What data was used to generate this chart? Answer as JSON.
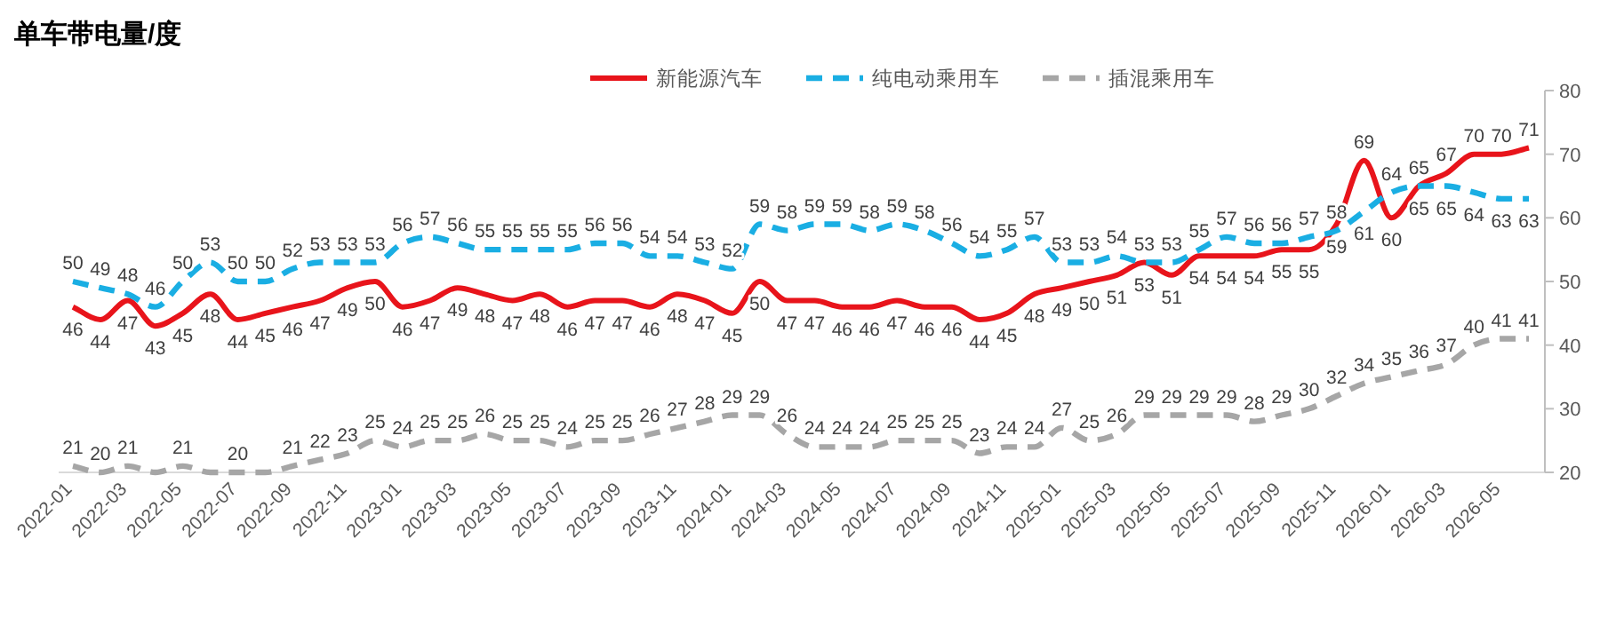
{
  "chart_data": {
    "type": "line",
    "title": "单车带电量/度",
    "categories": [
      "2022-01",
      null,
      "2022-03",
      null,
      "2022-05",
      null,
      "2022-07",
      null,
      "2022-09",
      null,
      "2022-11",
      null,
      "2023-01",
      null,
      "2023-03",
      null,
      "2023-05",
      null,
      "2023-07",
      null,
      "2023-09",
      null,
      "2023-11",
      null,
      "2024-01",
      null,
      "2024-03",
      null,
      "2024-05",
      null,
      "2024-07",
      null,
      "2024-09",
      null,
      "2024-11",
      null,
      "2025-01",
      null,
      "2025-03",
      null,
      "2025-05",
      null,
      "2025-07",
      null,
      "2025-09",
      null,
      "2025-11",
      null,
      "2026-01",
      null,
      "2026-03",
      null,
      "2026-05",
      null
    ],
    "series": [
      {
        "name": "新能源汽车",
        "color": "#e8141b",
        "line_style": "solid",
        "values": [
          46,
          44,
          47,
          43,
          45,
          48,
          44,
          45,
          46,
          47,
          49,
          50,
          46,
          47,
          49,
          48,
          47,
          48,
          46,
          47,
          47,
          46,
          48,
          47,
          45,
          50,
          47,
          47,
          46,
          46,
          47,
          46,
          46,
          44,
          45,
          48,
          49,
          50,
          51,
          53,
          51,
          54,
          54,
          54,
          55,
          55,
          59,
          69,
          60,
          65,
          67,
          70,
          70,
          71
        ],
        "value_labels": [
          "46",
          "44",
          "47",
          "43",
          "45",
          "48",
          "44",
          "45",
          "46",
          "47",
          "49",
          "50",
          "46",
          "47",
          "49",
          "48",
          "47",
          "48",
          "46",
          "47",
          "47",
          "46",
          "48",
          "47",
          "45",
          "50",
          "47",
          "47",
          "46",
          "46",
          "47",
          "46",
          "46",
          "44",
          "45",
          "48",
          "49",
          "50",
          "51",
          "53",
          "51",
          "54",
          "54",
          "54",
          "55",
          "55",
          "59",
          "69",
          "60",
          "65",
          "67",
          "70",
          "70",
          "71"
        ]
      },
      {
        "name": "纯电动乘用车",
        "color": "#1aaee3",
        "line_style": "dashed",
        "values": [
          50,
          49,
          48,
          46,
          50,
          53,
          50,
          50,
          52,
          53,
          53,
          53,
          56,
          57,
          56,
          55,
          55,
          55,
          55,
          56,
          56,
          54,
          54,
          53,
          52,
          59,
          58,
          59,
          59,
          58,
          59,
          58,
          56,
          54,
          55,
          57,
          53,
          53,
          54,
          53,
          53,
          55,
          57,
          56,
          56,
          57,
          58,
          61,
          64,
          65,
          65,
          64,
          63,
          63
        ],
        "value_labels": [
          "50",
          "49",
          "48",
          "46",
          "50",
          "53",
          "50",
          "50",
          "52",
          "53",
          "53",
          "53",
          "56",
          "57",
          "56",
          "55",
          "55",
          "55",
          "55",
          "56",
          "56",
          "54",
          "54",
          "53",
          "52",
          "59",
          "58",
          "59",
          "59",
          "58",
          "59",
          "58",
          "56",
          "54",
          "55",
          "57",
          "53",
          "53",
          "54",
          "53",
          "53",
          "55",
          "57",
          "56",
          "56",
          "57",
          "58",
          "61",
          "64",
          "65",
          "65",
          "64",
          "63",
          "63"
        ]
      },
      {
        "name": "插混乘用车",
        "color": "#a6a6a6",
        "line_style": "dashed",
        "values": [
          21,
          20,
          21,
          20,
          21,
          20,
          20,
          20,
          21,
          22,
          23,
          25,
          24,
          25,
          25,
          26,
          25,
          25,
          24,
          25,
          25,
          26,
          27,
          28,
          29,
          29,
          26,
          24,
          24,
          24,
          25,
          25,
          25,
          23,
          24,
          24,
          27,
          25,
          26,
          29,
          29,
          29,
          29,
          28,
          29,
          30,
          32,
          34,
          35,
          36,
          37,
          40,
          41,
          41
        ],
        "value_labels": [
          "21",
          "20",
          "21",
          null,
          "21",
          null,
          "20",
          null,
          "21",
          "22",
          "23",
          "25",
          "24",
          "25",
          "25",
          "26",
          "25",
          "25",
          "24",
          "25",
          "25",
          "26",
          "27",
          "28",
          "29",
          "29",
          "26",
          "24",
          "24",
          "24",
          "25",
          "25",
          "25",
          "23",
          "24",
          "24",
          "27",
          "25",
          "26",
          "29",
          "29",
          "29",
          "29",
          "28",
          "29",
          "30",
          "32",
          "34",
          "35",
          "36",
          "37",
          "40",
          "41",
          "41"
        ]
      }
    ],
    "ylim": [
      20,
      80
    ],
    "yticks": [
      20,
      30,
      40,
      50,
      60,
      70,
      80
    ],
    "legend": "top",
    "grid": false
  }
}
